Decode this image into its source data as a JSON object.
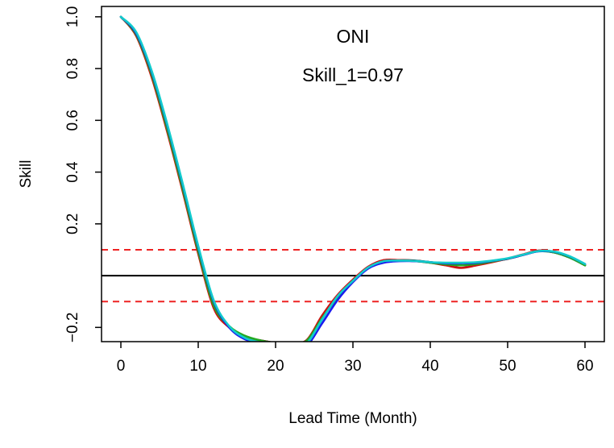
{
  "chart_data": {
    "type": "line",
    "title": "ONI",
    "subtitle": "Skill_1=0.97",
    "xlabel": "Lead Time (Month)",
    "ylabel": "Skill",
    "xlim": [
      -2.5,
      62.5
    ],
    "ylim": [
      -0.255,
      1.04
    ],
    "x_ticks": [
      0,
      10,
      20,
      30,
      40,
      50,
      60
    ],
    "y_ticks": [
      -0.2,
      0.2,
      0.4,
      0.6,
      0.8,
      1.0
    ],
    "x_tick_labels": [
      "0",
      "10",
      "20",
      "30",
      "40",
      "50",
      "60"
    ],
    "y_tick_labels": [
      "−0.2",
      "0.2",
      "0.4",
      "0.6",
      "0.8",
      "1.0"
    ],
    "grid": false,
    "legend": "none",
    "reference_lines": [
      {
        "y": 0.1,
        "style": "dashed",
        "color": "#ee2222"
      },
      {
        "y": 0.0,
        "style": "solid",
        "color": "#000000"
      },
      {
        "y": -0.1,
        "style": "dashed",
        "color": "#ee2222"
      }
    ],
    "x": [
      0,
      2,
      4,
      6,
      8,
      10,
      12,
      14,
      16,
      18,
      20,
      22,
      24,
      26,
      28,
      30,
      32,
      34,
      36,
      38,
      40,
      42,
      44,
      46,
      48,
      50,
      52,
      54,
      56,
      58,
      60
    ],
    "series": [
      {
        "color": "#000000",
        "values": [
          1.0,
          0.93,
          0.77,
          0.56,
          0.33,
          0.09,
          -0.12,
          -0.2,
          -0.24,
          -0.25,
          -0.26,
          -0.26,
          -0.25,
          -0.16,
          -0.08,
          -0.02,
          0.03,
          0.055,
          0.06,
          0.058,
          0.052,
          0.045,
          0.04,
          0.045,
          0.055,
          0.065,
          0.08,
          0.095,
          0.09,
          0.07,
          0.04
        ]
      },
      {
        "color": "#cc1111",
        "values": [
          1.0,
          0.925,
          0.765,
          0.555,
          0.325,
          0.085,
          -0.125,
          -0.2,
          -0.235,
          -0.25,
          -0.26,
          -0.26,
          -0.25,
          -0.155,
          -0.075,
          -0.015,
          0.035,
          0.06,
          0.06,
          0.057,
          0.05,
          0.04,
          0.03,
          0.04,
          0.052,
          0.066,
          0.082,
          0.097,
          0.092,
          0.072,
          0.042
        ]
      },
      {
        "color": "#22aa22",
        "values": [
          1.0,
          0.93,
          0.775,
          0.565,
          0.335,
          0.095,
          -0.115,
          -0.195,
          -0.232,
          -0.25,
          -0.26,
          -0.26,
          -0.252,
          -0.165,
          -0.085,
          -0.02,
          0.03,
          0.055,
          0.058,
          0.056,
          0.05,
          0.044,
          0.04,
          0.045,
          0.055,
          0.066,
          0.08,
          0.094,
          0.09,
          0.07,
          0.04
        ]
      },
      {
        "color": "#1a1aee",
        "values": [
          1.0,
          0.935,
          0.785,
          0.58,
          0.35,
          0.11,
          -0.1,
          -0.2,
          -0.245,
          -0.26,
          -0.27,
          -0.27,
          -0.27,
          -0.185,
          -0.095,
          -0.025,
          0.028,
          0.05,
          0.056,
          0.056,
          0.052,
          0.048,
          0.048,
          0.05,
          0.057,
          0.066,
          0.08,
          0.094,
          0.092,
          0.074,
          0.045
        ]
      },
      {
        "color": "#11cccc",
        "values": [
          1.0,
          0.94,
          0.79,
          0.585,
          0.355,
          0.115,
          -0.095,
          -0.195,
          -0.24,
          -0.258,
          -0.27,
          -0.27,
          -0.262,
          -0.17,
          -0.08,
          -0.02,
          0.032,
          0.056,
          0.058,
          0.057,
          0.052,
          0.05,
          0.05,
          0.052,
          0.058,
          0.067,
          0.081,
          0.095,
          0.093,
          0.075,
          0.045
        ]
      }
    ]
  }
}
